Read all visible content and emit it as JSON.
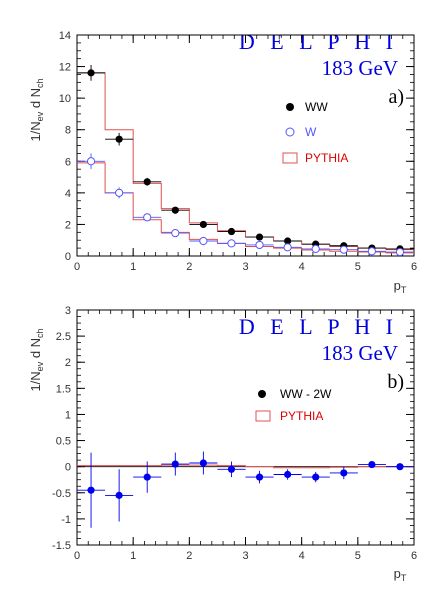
{
  "chart_data": [
    {
      "type": "scatter",
      "panel_label": "a)",
      "experiment": "D E L P H I",
      "energy": "183 GeV",
      "ylabel": "1/N_ev d N_ch",
      "xlabel": "p_T",
      "xlim": [
        0,
        6
      ],
      "ylim": [
        0,
        14
      ],
      "xticks": [
        0,
        1,
        2,
        3,
        4,
        5,
        6
      ],
      "yticks": [
        0,
        2,
        4,
        6,
        8,
        10,
        12,
        14
      ],
      "bin_edges": [
        0,
        0.5,
        1,
        1.5,
        2,
        2.5,
        3,
        3.5,
        4,
        4.5,
        5,
        5.5,
        6
      ],
      "x": [
        0.25,
        0.75,
        1.25,
        1.75,
        2.25,
        2.75,
        3.25,
        3.75,
        4.25,
        4.75,
        5.25,
        5.75
      ],
      "legend": {
        "ww": "WW",
        "w": "W",
        "pythia": "PYTHIA"
      },
      "series": [
        {
          "name": "WW",
          "marker": "filled-circle",
          "color": "#000000",
          "values": [
            11.6,
            7.4,
            4.7,
            2.9,
            2.0,
            1.55,
            1.2,
            0.95,
            0.75,
            0.65,
            0.5,
            0.45
          ],
          "errors": [
            0.5,
            0.4,
            0.25,
            0.15,
            0.12,
            0.1,
            0.1,
            0.08,
            0.07,
            0.07,
            0.06,
            0.06
          ]
        },
        {
          "name": "W",
          "marker": "open-circle",
          "color": "#5555ff",
          "values": [
            6.0,
            4.0,
            2.45,
            1.45,
            0.95,
            0.8,
            0.7,
            0.55,
            0.45,
            0.4,
            0.3,
            0.25
          ],
          "errors": [
            0.5,
            0.35,
            0.2,
            0.12,
            0.1,
            0.08,
            0.07,
            0.06,
            0.05,
            0.05,
            0.05,
            0.05
          ]
        },
        {
          "name": "PYTHIA",
          "marker": "histogram",
          "color": "#e05050",
          "values_ww": [
            11.6,
            8.0,
            4.6,
            3.0,
            2.1,
            1.6,
            1.2,
            0.95,
            0.75,
            0.6,
            0.5,
            0.4
          ],
          "values_w": [
            5.9,
            4.0,
            2.3,
            1.5,
            1.05,
            0.8,
            0.6,
            0.5,
            0.38,
            0.3,
            0.25,
            0.2
          ]
        }
      ]
    },
    {
      "type": "scatter",
      "panel_label": "b)",
      "experiment": "D E L P H I",
      "energy": "183 GeV",
      "ylabel": "1/N_ev d N_ch",
      "xlabel": "p_T",
      "xlim": [
        0,
        6
      ],
      "ylim": [
        -1.5,
        3
      ],
      "xticks": [
        0,
        1,
        2,
        3,
        4,
        5,
        6
      ],
      "yticks": [
        -1.5,
        -1,
        -0.5,
        0,
        0.5,
        1,
        1.5,
        2,
        2.5,
        3
      ],
      "bin_edges": [
        0,
        0.5,
        1,
        1.5,
        2,
        2.5,
        3,
        3.5,
        4,
        4.5,
        5,
        5.5,
        6
      ],
      "x": [
        0.25,
        0.75,
        1.25,
        1.75,
        2.25,
        2.75,
        3.25,
        3.75,
        4.25,
        4.75,
        5.25,
        5.75
      ],
      "legend": {
        "diff": "WW - 2W",
        "pythia": "PYTHIA"
      },
      "series": [
        {
          "name": "WW - 2W",
          "marker": "filled-circle",
          "color": "#0000ee",
          "values": [
            -0.45,
            -0.55,
            -0.2,
            0.05,
            0.07,
            -0.05,
            -0.2,
            -0.15,
            -0.2,
            -0.12,
            0.04,
            0.0
          ],
          "errors": [
            0.72,
            0.5,
            0.3,
            0.22,
            0.22,
            0.15,
            0.12,
            0.1,
            0.1,
            0.12,
            0.06,
            0.06
          ]
        },
        {
          "name": "PYTHIA",
          "marker": "histogram",
          "color": "#e05050",
          "values": [
            0.02,
            0.02,
            0.02,
            0.03,
            0.03,
            0.02,
            0.0,
            -0.02,
            -0.02,
            -0.01,
            0.0,
            0.0
          ]
        }
      ]
    }
  ]
}
